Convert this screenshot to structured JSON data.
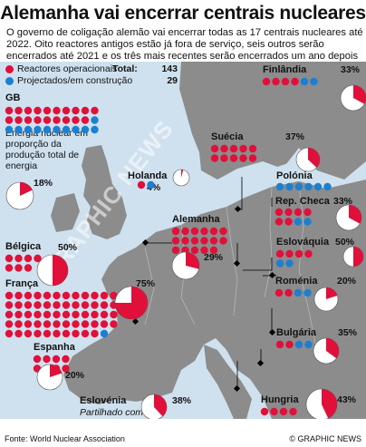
{
  "title": "Alemanha vai encerrar centrais nucleares",
  "intro": "O governo de coligação alemão vai encerrar todas as 17 centrais nucleares até 2022. Oito reactores antigos estão já fora de serviço, seis outros serão encerrados até 2021 e os três mais recentes serão encerrados um ano depois",
  "legend": {
    "operational": {
      "label": "Reactores operacionais",
      "total_label": "Total:",
      "total": "143",
      "color": "#e0103a"
    },
    "planned": {
      "label": "Projectados/em construção",
      "total": "29",
      "color": "#1d7fd0"
    }
  },
  "colors": {
    "sea": "#cfe1ee",
    "land": "#8c8c8c",
    "pie_bg": "#ffffff",
    "pie_fill": "#e0103a"
  },
  "gb_description": "Energia nuclear em proporção da produção total de energia",
  "countries": [
    {
      "name": "GB",
      "operational": 19,
      "planned": 11,
      "share_label": "18%",
      "share": 18
    },
    {
      "name": "Finlândia",
      "operational": 4,
      "planned": 2,
      "share_label": "33%",
      "share": 33
    },
    {
      "name": "Suécia",
      "operational": 10,
      "planned": 0,
      "share_label": "37%",
      "share": 37
    },
    {
      "name": "Holanda",
      "operational": 1,
      "planned": 1,
      "share_label": "4%",
      "share": 4
    },
    {
      "name": "Polónia",
      "operational": 0,
      "planned": 6,
      "share_label": "",
      "share": null
    },
    {
      "name": "Rep. Checa",
      "operational": 6,
      "planned": 2,
      "share_label": "33%",
      "share": 33
    },
    {
      "name": "Alemanha",
      "operational": 17,
      "planned": 0,
      "share_label": "29%",
      "share": 29
    },
    {
      "name": "Bélgica",
      "operational": 7,
      "planned": 0,
      "share_label": "50%",
      "share": 50
    },
    {
      "name": "Eslováquia",
      "operational": 4,
      "planned": 2,
      "share_label": "50%",
      "share": 50
    },
    {
      "name": "França",
      "operational": 58,
      "planned": 1,
      "share_label": "75%",
      "share": 75
    },
    {
      "name": "Roménia",
      "operational": 2,
      "planned": 2,
      "share_label": "20%",
      "share": 20
    },
    {
      "name": "Espanha",
      "operational": 8,
      "planned": 0,
      "share_label": "20%",
      "share": 20
    },
    {
      "name": "Bulgária",
      "operational": 2,
      "planned": 2,
      "share_label": "35%",
      "share": 35
    },
    {
      "name": "Eslovénia",
      "operational": 1,
      "planned": 0,
      "share_label": "38%",
      "share": 38
    },
    {
      "name": "Hungria",
      "operational": 4,
      "planned": 0,
      "share_label": "43%",
      "share": 43
    }
  ],
  "slovenia_note": "Partilhado com a Croácia",
  "watermark": "GRAPHIC NEWS",
  "source": "Fonte: World Nuclear Association",
  "credit": "© GRAPHIC NEWS"
}
